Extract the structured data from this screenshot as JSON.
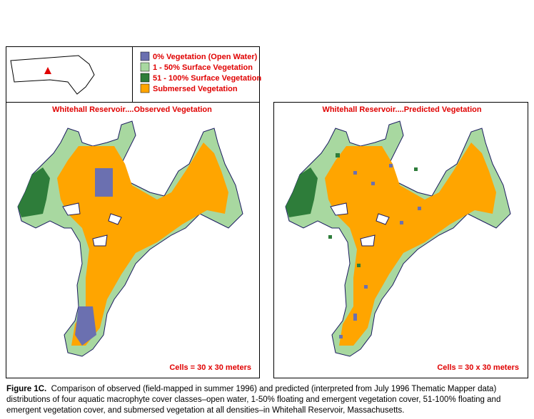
{
  "legend": [
    {
      "label": "0% Vegetation (Open Water)",
      "color": "#6b70b0"
    },
    {
      "label": "1 - 50% Surface Vegetation",
      "color": "#a8d8a0"
    },
    {
      "label": "51 - 100% Surface Vegetation",
      "color": "#2e7d3a"
    },
    {
      "label": "Submersed Vegetation",
      "color": "#ffa500"
    }
  ],
  "panels": [
    {
      "title": "Whitehall Reservoir....Observed Vegetation",
      "note": "Cells = 30 x 30 meters"
    },
    {
      "title": "Whitehall Reservoir....Predicted Vegetation",
      "note": "Cells = 30 x 30 meters"
    }
  ],
  "caption": {
    "label": "Figure 1C.",
    "text": "Comparison of observed (field-mapped in summer 1996) and predicted (interpreted from July 1996 Thematic Mapper data) distributions of four aquatic macrophyte cover classes–open water, 1-50% floating and emergent vegetation cover, 51-100% floating and emergent vegetation cover, and submersed vegetation at all densities–in Whitehall Reservoir, Massachusetts."
  }
}
